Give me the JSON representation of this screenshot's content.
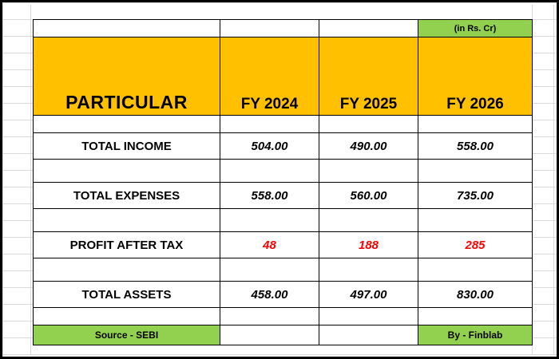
{
  "unit_note": "(in Rs. Cr)",
  "header": {
    "particular": "PARTICULAR",
    "years": [
      "FY 2024",
      "FY 2025",
      "FY 2026"
    ]
  },
  "rows": {
    "total_income": {
      "label": "TOTAL INCOME",
      "values": [
        "504.00",
        "490.00",
        "558.00"
      ]
    },
    "total_expenses": {
      "label": "TOTAL EXPENSES",
      "values": [
        "558.00",
        "560.00",
        "735.00"
      ]
    },
    "profit_after_tax": {
      "label": "PROFIT AFTER TAX",
      "values": [
        "48",
        "188",
        "285"
      ]
    },
    "total_assets": {
      "label": "TOTAL ASSETS",
      "values": [
        "458.00",
        "497.00",
        "830.00"
      ]
    }
  },
  "footer": {
    "source": "Source - SEBI",
    "by": "By - Finblab"
  },
  "colors": {
    "header_fill": "#ffc000",
    "note_fill": "#92d050",
    "profit_text": "#ff0000",
    "gridline": "#d9d9d9"
  }
}
